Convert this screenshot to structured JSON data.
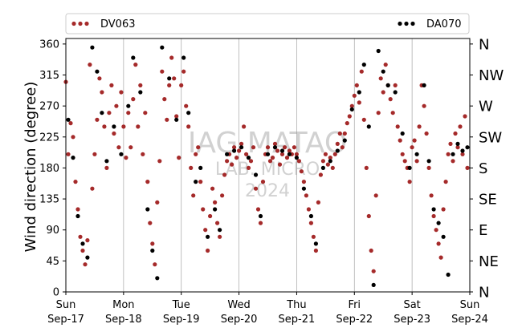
{
  "chart_data": {
    "type": "scatter",
    "ylabel": "Wind direction (degree)",
    "ylim": [
      0,
      368
    ],
    "y_ticks": [
      0,
      45,
      90,
      135,
      180,
      225,
      270,
      315,
      360
    ],
    "x_start": "2024-09-17",
    "x_end": "2024-09-24",
    "x_ticks": [
      {
        "date": "2024-09-17",
        "day": "Sun",
        "label": "Sep-17"
      },
      {
        "date": "2024-09-18",
        "day": "Mon",
        "label": "Sep-18"
      },
      {
        "date": "2024-09-19",
        "day": "Tue",
        "label": "Sep-19"
      },
      {
        "date": "2024-09-20",
        "day": "Wed",
        "label": "Sep-20"
      },
      {
        "date": "2024-09-21",
        "day": "Thu",
        "label": "Sep-21"
      },
      {
        "date": "2024-09-22",
        "day": "Fri",
        "label": "Sep-22"
      },
      {
        "date": "2024-09-23",
        "day": "Sat",
        "label": "Sep-23"
      },
      {
        "date": "2024-09-24",
        "day": "Sun",
        "label": "Sep-24"
      }
    ],
    "secondary_ticks": [
      {
        "value": 0,
        "label": "N"
      },
      {
        "value": 45,
        "label": "NE"
      },
      {
        "value": 90,
        "label": "E"
      },
      {
        "value": 135,
        "label": "SE"
      },
      {
        "value": 180,
        "label": "S"
      },
      {
        "value": 225,
        "label": "SW"
      },
      {
        "value": 270,
        "label": "W"
      },
      {
        "value": 315,
        "label": "NW"
      },
      {
        "value": 360,
        "label": "N"
      }
    ],
    "grid": "vertical",
    "legend_placement": "top",
    "series": [
      {
        "name": "DV063",
        "color": "#a52a2a",
        "points": [
          [
            "2024-09-17 00:00",
            305
          ],
          [
            "2024-09-17 01:00",
            200
          ],
          [
            "2024-09-17 02:00",
            245
          ],
          [
            "2024-09-17 03:00",
            225
          ],
          [
            "2024-09-17 04:00",
            160
          ],
          [
            "2024-09-17 05:00",
            120
          ],
          [
            "2024-09-17 06:00",
            80
          ],
          [
            "2024-09-17 07:00",
            60
          ],
          [
            "2024-09-17 08:00",
            40
          ],
          [
            "2024-09-17 09:00",
            75
          ],
          [
            "2024-09-17 10:00",
            330
          ],
          [
            "2024-09-17 11:00",
            150
          ],
          [
            "2024-09-17 12:00",
            200
          ],
          [
            "2024-09-17 13:00",
            250
          ],
          [
            "2024-09-17 14:00",
            310
          ],
          [
            "2024-09-17 15:00",
            290
          ],
          [
            "2024-09-17 16:00",
            240
          ],
          [
            "2024-09-17 17:00",
            180
          ],
          [
            "2024-09-17 18:00",
            260
          ],
          [
            "2024-09-17 19:00",
            300
          ],
          [
            "2024-09-17 20:00",
            230
          ],
          [
            "2024-09-17 21:00",
            270
          ],
          [
            "2024-09-17 22:00",
            210
          ],
          [
            "2024-09-17 23:00",
            290
          ],
          [
            "2024-09-18 00:00",
            240
          ],
          [
            "2024-09-18 01:00",
            195
          ],
          [
            "2024-09-18 02:00",
            260
          ],
          [
            "2024-09-18 03:00",
            210
          ],
          [
            "2024-09-18 04:00",
            280
          ],
          [
            "2024-09-18 05:00",
            330
          ],
          [
            "2024-09-18 06:00",
            240
          ],
          [
            "2024-09-18 07:00",
            300
          ],
          [
            "2024-09-18 08:00",
            200
          ],
          [
            "2024-09-18 09:00",
            260
          ],
          [
            "2024-09-18 10:00",
            160
          ],
          [
            "2024-09-18 11:00",
            100
          ],
          [
            "2024-09-18 12:00",
            70
          ],
          [
            "2024-09-18 13:00",
            40
          ],
          [
            "2024-09-18 14:00",
            130
          ],
          [
            "2024-09-18 15:00",
            190
          ],
          [
            "2024-09-18 16:00",
            320
          ],
          [
            "2024-09-18 17:00",
            280
          ],
          [
            "2024-09-18 18:00",
            250
          ],
          [
            "2024-09-18 19:00",
            300
          ],
          [
            "2024-09-18 20:00",
            340
          ],
          [
            "2024-09-18 21:00",
            310
          ],
          [
            "2024-09-18 22:00",
            255
          ],
          [
            "2024-09-18 23:00",
            195
          ],
          [
            "2024-09-19 00:00",
            300
          ],
          [
            "2024-09-19 01:00",
            320
          ],
          [
            "2024-09-19 02:00",
            270
          ],
          [
            "2024-09-19 03:00",
            240
          ],
          [
            "2024-09-19 04:00",
            180
          ],
          [
            "2024-09-19 05:00",
            140
          ],
          [
            "2024-09-19 06:00",
            200
          ],
          [
            "2024-09-19 07:00",
            210
          ],
          [
            "2024-09-19 08:00",
            160
          ],
          [
            "2024-09-19 09:00",
            120
          ],
          [
            "2024-09-19 10:00",
            90
          ],
          [
            "2024-09-19 11:00",
            60
          ],
          [
            "2024-09-19 12:00",
            110
          ],
          [
            "2024-09-19 13:00",
            150
          ],
          [
            "2024-09-19 14:00",
            130
          ],
          [
            "2024-09-19 15:00",
            100
          ],
          [
            "2024-09-19 16:00",
            80
          ],
          [
            "2024-09-19 17:00",
            140
          ],
          [
            "2024-09-19 18:00",
            170
          ],
          [
            "2024-09-19 19:00",
            190
          ],
          [
            "2024-09-19 20:00",
            200
          ],
          [
            "2024-09-19 21:00",
            185
          ],
          [
            "2024-09-19 22:00",
            210
          ],
          [
            "2024-09-19 23:00",
            195
          ],
          [
            "2024-09-20 00:00",
            205
          ],
          [
            "2024-09-20 01:00",
            215
          ],
          [
            "2024-09-20 02:00",
            240
          ],
          [
            "2024-09-20 03:00",
            200
          ],
          [
            "2024-09-20 04:00",
            180
          ],
          [
            "2024-09-20 05:00",
            190
          ],
          [
            "2024-09-20 06:00",
            210
          ],
          [
            "2024-09-20 07:00",
            150
          ],
          [
            "2024-09-20 08:00",
            120
          ],
          [
            "2024-09-20 09:00",
            100
          ],
          [
            "2024-09-20 10:00",
            160
          ],
          [
            "2024-09-20 11:00",
            200
          ],
          [
            "2024-09-20 12:00",
            210
          ],
          [
            "2024-09-20 13:00",
            190
          ],
          [
            "2024-09-20 14:00",
            195
          ],
          [
            "2024-09-20 15:00",
            215
          ],
          [
            "2024-09-20 16:00",
            205
          ],
          [
            "2024-09-20 17:00",
            185
          ],
          [
            "2024-09-20 18:00",
            200
          ],
          [
            "2024-09-20 19:00",
            210
          ],
          [
            "2024-09-20 20:00",
            195
          ],
          [
            "2024-09-20 21:00",
            205
          ],
          [
            "2024-09-20 22:00",
            200
          ],
          [
            "2024-09-20 23:00",
            210
          ],
          [
            "2024-09-21 00:00",
            200
          ],
          [
            "2024-09-21 01:00",
            190
          ],
          [
            "2024-09-21 02:00",
            175
          ],
          [
            "2024-09-21 03:00",
            160
          ],
          [
            "2024-09-21 04:00",
            140
          ],
          [
            "2024-09-21 05:00",
            120
          ],
          [
            "2024-09-21 06:00",
            100
          ],
          [
            "2024-09-21 07:00",
            80
          ],
          [
            "2024-09-21 08:00",
            60
          ],
          [
            "2024-09-21 09:00",
            130
          ],
          [
            "2024-09-21 10:00",
            170
          ],
          [
            "2024-09-21 11:00",
            190
          ],
          [
            "2024-09-21 12:00",
            200
          ],
          [
            "2024-09-21 13:00",
            185
          ],
          [
            "2024-09-21 14:00",
            195
          ],
          [
            "2024-09-21 15:00",
            180
          ],
          [
            "2024-09-21 16:00",
            200
          ],
          [
            "2024-09-21 17:00",
            215
          ],
          [
            "2024-09-21 18:00",
            230
          ],
          [
            "2024-09-21 19:00",
            210
          ],
          [
            "2024-09-21 20:00",
            230
          ],
          [
            "2024-09-21 21:00",
            245
          ],
          [
            "2024-09-21 22:00",
            255
          ],
          [
            "2024-09-21 23:00",
            270
          ],
          [
            "2024-09-22 00:00",
            285
          ],
          [
            "2024-09-22 01:00",
            300
          ],
          [
            "2024-09-22 02:00",
            275
          ],
          [
            "2024-09-22 03:00",
            320
          ],
          [
            "2024-09-22 04:00",
            250
          ],
          [
            "2024-09-22 05:00",
            180
          ],
          [
            "2024-09-22 06:00",
            110
          ],
          [
            "2024-09-22 07:00",
            60
          ],
          [
            "2024-09-22 08:00",
            30
          ],
          [
            "2024-09-22 09:00",
            140
          ],
          [
            "2024-09-22 10:00",
            260
          ],
          [
            "2024-09-22 11:00",
            310
          ],
          [
            "2024-09-22 12:00",
            290
          ],
          [
            "2024-09-22 13:00",
            330
          ],
          [
            "2024-09-22 14:00",
            300
          ],
          [
            "2024-09-22 15:00",
            280
          ],
          [
            "2024-09-22 16:00",
            260
          ],
          [
            "2024-09-22 17:00",
            300
          ],
          [
            "2024-09-22 18:00",
            240
          ],
          [
            "2024-09-22 19:00",
            220
          ],
          [
            "2024-09-22 20:00",
            200
          ],
          [
            "2024-09-22 21:00",
            190
          ],
          [
            "2024-09-22 22:00",
            180
          ],
          [
            "2024-09-22 23:00",
            160
          ],
          [
            "2024-09-23 00:00",
            210
          ],
          [
            "2024-09-23 01:00",
            220
          ],
          [
            "2024-09-23 02:00",
            190
          ],
          [
            "2024-09-23 03:00",
            240
          ],
          [
            "2024-09-23 04:00",
            300
          ],
          [
            "2024-09-23 05:00",
            270
          ],
          [
            "2024-09-23 06:00",
            230
          ],
          [
            "2024-09-23 07:00",
            180
          ],
          [
            "2024-09-23 08:00",
            140
          ],
          [
            "2024-09-23 09:00",
            110
          ],
          [
            "2024-09-23 10:00",
            90
          ],
          [
            "2024-09-23 11:00",
            70
          ],
          [
            "2024-09-23 12:00",
            50
          ],
          [
            "2024-09-23 13:00",
            120
          ],
          [
            "2024-09-23 14:00",
            160
          ],
          [
            "2024-09-23 15:00",
            200
          ],
          [
            "2024-09-23 16:00",
            215
          ],
          [
            "2024-09-23 17:00",
            190
          ],
          [
            "2024-09-23 18:00",
            230
          ],
          [
            "2024-09-23 19:00",
            210
          ],
          [
            "2024-09-23 20:00",
            240
          ],
          [
            "2024-09-23 21:00",
            200
          ],
          [
            "2024-09-23 22:00",
            255
          ],
          [
            "2024-09-23 23:00",
            180
          ]
        ]
      },
      {
        "name": "DA070",
        "color": "#000000",
        "points": [
          [
            "2024-09-17 01:00",
            250
          ],
          [
            "2024-09-17 03:00",
            195
          ],
          [
            "2024-09-17 05:00",
            110
          ],
          [
            "2024-09-17 07:00",
            70
          ],
          [
            "2024-09-17 09:00",
            50
          ],
          [
            "2024-09-17 11:00",
            355
          ],
          [
            "2024-09-17 13:00",
            320
          ],
          [
            "2024-09-17 15:00",
            260
          ],
          [
            "2024-09-17 17:00",
            190
          ],
          [
            "2024-09-17 20:00",
            240
          ],
          [
            "2024-09-17 23:00",
            200
          ],
          [
            "2024-09-18 02:00",
            270
          ],
          [
            "2024-09-18 04:00",
            340
          ],
          [
            "2024-09-18 07:00",
            290
          ],
          [
            "2024-09-18 10:00",
            120
          ],
          [
            "2024-09-18 12:00",
            60
          ],
          [
            "2024-09-18 14:00",
            20
          ],
          [
            "2024-09-18 16:00",
            355
          ],
          [
            "2024-09-18 19:00",
            310
          ],
          [
            "2024-09-18 22:00",
            250
          ],
          [
            "2024-09-19 01:00",
            340
          ],
          [
            "2024-09-19 03:00",
            260
          ],
          [
            "2024-09-19 06:00",
            160
          ],
          [
            "2024-09-19 08:00",
            180
          ],
          [
            "2024-09-19 11:00",
            80
          ],
          [
            "2024-09-19 14:00",
            120
          ],
          [
            "2024-09-19 16:00",
            90
          ],
          [
            "2024-09-19 19:00",
            200
          ],
          [
            "2024-09-19 22:00",
            205
          ],
          [
            "2024-09-20 01:00",
            210
          ],
          [
            "2024-09-20 04:00",
            195
          ],
          [
            "2024-09-20 07:00",
            170
          ],
          [
            "2024-09-20 09:00",
            110
          ],
          [
            "2024-09-20 12:00",
            200
          ],
          [
            "2024-09-20 15:00",
            210
          ],
          [
            "2024-09-20 18:00",
            205
          ],
          [
            "2024-09-20 21:00",
            200
          ],
          [
            "2024-09-21 00:00",
            195
          ],
          [
            "2024-09-21 03:00",
            150
          ],
          [
            "2024-09-21 06:00",
            110
          ],
          [
            "2024-09-21 08:00",
            70
          ],
          [
            "2024-09-21 11:00",
            180
          ],
          [
            "2024-09-21 14:00",
            190
          ],
          [
            "2024-09-21 17:00",
            205
          ],
          [
            "2024-09-21 20:00",
            220
          ],
          [
            "2024-09-21 23:00",
            265
          ],
          [
            "2024-09-22 02:00",
            290
          ],
          [
            "2024-09-22 04:00",
            330
          ],
          [
            "2024-09-22 06:00",
            240
          ],
          [
            "2024-09-22 08:00",
            10
          ],
          [
            "2024-09-22 10:00",
            350
          ],
          [
            "2024-09-22 12:00",
            320
          ],
          [
            "2024-09-22 14:00",
            300
          ],
          [
            "2024-09-22 17:00",
            290
          ],
          [
            "2024-09-22 20:00",
            230
          ],
          [
            "2024-09-22 23:00",
            180
          ],
          [
            "2024-09-23 02:00",
            200
          ],
          [
            "2024-09-23 05:00",
            300
          ],
          [
            "2024-09-23 07:00",
            190
          ],
          [
            "2024-09-23 09:00",
            120
          ],
          [
            "2024-09-23 11:00",
            100
          ],
          [
            "2024-09-23 13:00",
            80
          ],
          [
            "2024-09-23 15:00",
            25
          ],
          [
            "2024-09-23 17:00",
            200
          ],
          [
            "2024-09-23 19:00",
            215
          ],
          [
            "2024-09-23 21:00",
            205
          ],
          [
            "2024-09-23 23:00",
            210
          ]
        ]
      }
    ]
  },
  "watermark": {
    "line1": "IAG MATAO",
    "line2": "LAB. MICRO",
    "line3": "2024"
  }
}
